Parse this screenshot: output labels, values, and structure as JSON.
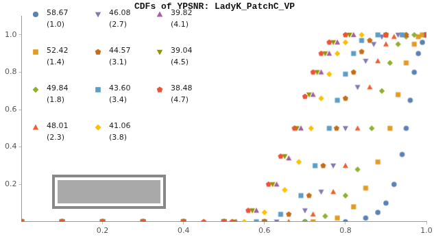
{
  "chart_data": {
    "type": "scatter",
    "title": "CDFs of YPSNR: LadyK_PatchC_VP",
    "xlim": [
      0,
      1
    ],
    "xticks": [
      0.2,
      0.4,
      0.6,
      0.8,
      {
        "value": 1,
        "label": "1.0"
      }
    ],
    "ylim": [
      0,
      1.1
    ],
    "yticks": [
      0.2,
      0.4,
      0.6,
      0.8,
      {
        "value": 1,
        "label": "1.0"
      }
    ],
    "grid": false,
    "legend": "upper left",
    "series": [
      {
        "name": "58.67 (1.0)",
        "color": "#5e81b5",
        "marker": "circle",
        "x": [
          0,
          0.1,
          0.2,
          0.3,
          0.4,
          0.5,
          0.6,
          0.7,
          0.8,
          0.85,
          0.88,
          0.9,
          0.92,
          0.94,
          0.95,
          0.96,
          0.97,
          0.98,
          0.99,
          1.0
        ],
        "values": [
          0,
          0,
          0,
          0,
          0,
          0,
          0,
          0,
          0,
          0.02,
          0.05,
          0.1,
          0.2,
          0.36,
          0.5,
          0.65,
          0.8,
          0.9,
          0.96,
          1.0
        ]
      },
      {
        "name": "52.42 (1.4)",
        "color": "#e19c24",
        "marker": "square",
        "x": [
          0,
          0.1,
          0.2,
          0.3,
          0.4,
          0.5,
          0.6,
          0.72,
          0.78,
          0.82,
          0.85,
          0.88,
          0.91,
          0.93,
          0.95,
          0.97,
          0.98,
          0.99,
          1.0
        ],
        "values": [
          0,
          0,
          0,
          0,
          0,
          0,
          0,
          0,
          0.02,
          0.08,
          0.18,
          0.32,
          0.5,
          0.68,
          0.85,
          0.95,
          0.99,
          1.0,
          1.0
        ]
      },
      {
        "name": "49.84 (1.8)",
        "color": "#8fb032",
        "marker": "diamond",
        "x": [
          0,
          0.1,
          0.2,
          0.3,
          0.4,
          0.5,
          0.6,
          0.7,
          0.75,
          0.8,
          0.83,
          0.865,
          0.89,
          0.91,
          0.93,
          0.95,
          0.97,
          1.0
        ],
        "values": [
          0,
          0,
          0,
          0,
          0,
          0,
          0,
          0,
          0.03,
          0.14,
          0.28,
          0.5,
          0.7,
          0.85,
          0.95,
          0.99,
          1.0,
          1.0
        ]
      },
      {
        "name": "48.01 (2.3)",
        "color": "#eb6235",
        "marker": "triangle",
        "x": [
          0,
          0.1,
          0.2,
          0.3,
          0.4,
          0.5,
          0.6,
          0.66,
          0.72,
          0.77,
          0.8,
          0.83,
          0.86,
          0.88,
          0.9,
          0.92,
          0.95,
          1.0
        ],
        "values": [
          0,
          0,
          0,
          0,
          0,
          0,
          0,
          0,
          0.04,
          0.16,
          0.3,
          0.5,
          0.72,
          0.86,
          0.95,
          0.99,
          1.0,
          1.0
        ]
      },
      {
        "name": "46.08 (2.7)",
        "color": "#8778b3",
        "marker": "triangle_down",
        "x": [
          0,
          0.1,
          0.2,
          0.3,
          0.4,
          0.5,
          0.6,
          0.63,
          0.7,
          0.74,
          0.77,
          0.8,
          0.83,
          0.85,
          0.87,
          0.89,
          0.93,
          1.0
        ],
        "values": [
          0,
          0,
          0,
          0,
          0,
          0,
          0,
          0,
          0.06,
          0.16,
          0.3,
          0.5,
          0.72,
          0.86,
          0.95,
          0.99,
          1.0,
          1.0
        ]
      },
      {
        "name": "44.57 (3.1)",
        "color": "#c56e1a",
        "marker": "pentagon",
        "x": [
          0,
          0.1,
          0.2,
          0.3,
          0.4,
          0.5,
          0.6,
          0.66,
          0.71,
          0.745,
          0.778,
          0.8,
          0.82,
          0.84,
          0.86,
          0.9,
          0.95,
          1.0
        ],
        "values": [
          0,
          0,
          0,
          0,
          0,
          0,
          0,
          0.04,
          0.14,
          0.3,
          0.5,
          0.66,
          0.8,
          0.91,
          0.97,
          1.0,
          1.0,
          1.0
        ]
      },
      {
        "name": "43.60 (3.4)",
        "color": "#5d9ec7",
        "marker": "square",
        "x": [
          0,
          0.1,
          0.2,
          0.3,
          0.4,
          0.5,
          0.58,
          0.64,
          0.69,
          0.725,
          0.76,
          0.78,
          0.8,
          0.82,
          0.84,
          0.88,
          0.94,
          1.0
        ],
        "values": [
          0,
          0,
          0,
          0,
          0,
          0,
          0,
          0.04,
          0.14,
          0.3,
          0.5,
          0.65,
          0.79,
          0.9,
          0.97,
          1.0,
          1.0,
          1.0
        ]
      },
      {
        "name": "41.06 (3.8)",
        "color": "#ffbf00",
        "marker": "diamond",
        "x": [
          0,
          0.1,
          0.2,
          0.3,
          0.4,
          0.5,
          0.55,
          0.6,
          0.65,
          0.685,
          0.715,
          0.74,
          0.76,
          0.78,
          0.8,
          0.84,
          0.9,
          1.0
        ],
        "values": [
          0,
          0,
          0,
          0,
          0,
          0,
          0,
          0.05,
          0.17,
          0.32,
          0.5,
          0.66,
          0.79,
          0.9,
          0.96,
          1.0,
          1.0,
          1.0
        ]
      },
      {
        "name": "39.82 (4.1)",
        "color": "#a5609d",
        "marker": "triangle",
        "x": [
          0,
          0.1,
          0.2,
          0.3,
          0.4,
          0.5,
          0.53,
          0.58,
          0.63,
          0.66,
          0.69,
          0.72,
          0.74,
          0.76,
          0.78,
          0.82,
          0.9,
          1.0
        ],
        "values": [
          0,
          0,
          0,
          0,
          0,
          0,
          0,
          0.06,
          0.2,
          0.34,
          0.5,
          0.68,
          0.8,
          0.9,
          0.96,
          1.0,
          1.0,
          1.0
        ]
      },
      {
        "name": "39.04 (4.5)",
        "color": "#929600",
        "marker": "triangle_down",
        "x": [
          0,
          0.1,
          0.2,
          0.3,
          0.4,
          0.5,
          0.525,
          0.57,
          0.62,
          0.65,
          0.68,
          0.71,
          0.73,
          0.75,
          0.77,
          0.81,
          0.9,
          1.0
        ],
        "values": [
          0,
          0,
          0,
          0,
          0,
          0,
          0,
          0.06,
          0.2,
          0.35,
          0.5,
          0.68,
          0.8,
          0.9,
          0.96,
          1.0,
          1.0,
          1.0
        ]
      },
      {
        "name": "38.48 (4.7)",
        "color": "#e95536",
        "marker": "pentagon",
        "x": [
          0,
          0.1,
          0.2,
          0.3,
          0.4,
          0.45,
          0.5,
          0.52,
          0.56,
          0.61,
          0.64,
          0.674,
          0.7,
          0.72,
          0.74,
          0.76,
          0.8,
          0.9,
          1.0
        ],
        "values": [
          0,
          0,
          0,
          0,
          0,
          0,
          0,
          0,
          0.06,
          0.2,
          0.35,
          0.5,
          0.67,
          0.8,
          0.9,
          0.96,
          1.0,
          1.0,
          1.0
        ]
      }
    ]
  }
}
